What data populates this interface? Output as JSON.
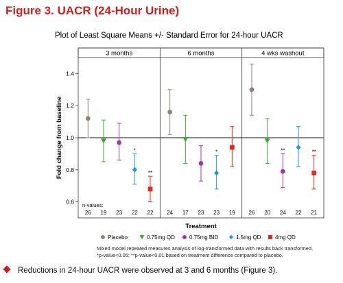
{
  "figure_title": "Figure 3. UACR (24-Hour Urine)",
  "bullet_text": "Reductions in 24-hour UACR were observed at 3 and 6 months (Figure 3).",
  "footnote_1": "Mixed model repeated measures analysis of log-transformed data with results back transformed.",
  "footnote_2": "*p-value<0.05; **p-value<0.01 based on treatment difference compared to placebo.",
  "chart_data": {
    "type": "scatter",
    "title": "Plot of Least Square Means +/- Standard Error for 24-hour UACR",
    "xlabel": "Treatment",
    "ylabel": "Fold change from baseline",
    "ylim": [
      0.5,
      1.5
    ],
    "yticks": [
      0.6,
      0.8,
      1.0,
      1.2,
      1.4
    ],
    "reference_line": 1.0,
    "n_values_label": "n-values:",
    "panels": [
      "3 months",
      "6 months",
      "4 wks washout"
    ],
    "series": [
      {
        "name": "Placebo",
        "color": "#8c8279",
        "marker": "circle",
        "mean": [
          1.12,
          1.16,
          1.3
        ],
        "lower": [
          1.0,
          1.02,
          1.14
        ],
        "upper": [
          1.24,
          1.3,
          1.46
        ],
        "sig": [
          "",
          "",
          ""
        ],
        "n": [
          26,
          24,
          26
        ]
      },
      {
        "name": "0.75mg QD",
        "color": "#3aa935",
        "marker": "triangle",
        "mean": [
          0.98,
          0.99,
          0.98
        ],
        "lower": [
          0.85,
          0.84,
          0.84
        ],
        "upper": [
          1.11,
          1.14,
          1.12
        ],
        "sig": [
          "",
          "",
          ""
        ],
        "n": [
          19,
          17,
          20
        ]
      },
      {
        "name": "0.75mg BID",
        "color": "#9b3b9e",
        "marker": "circle",
        "mean": [
          0.97,
          0.84,
          0.79
        ],
        "lower": [
          0.86,
          0.73,
          0.69
        ],
        "upper": [
          1.09,
          0.95,
          0.9
        ],
        "sig": [
          "",
          "",
          "**"
        ],
        "n": [
          23,
          23,
          24
        ]
      },
      {
        "name": "1.5mg QD",
        "color": "#1f9ad6",
        "marker": "diamond",
        "mean": [
          0.8,
          0.78,
          0.94
        ],
        "lower": [
          0.71,
          0.68,
          0.82
        ],
        "upper": [
          0.9,
          0.89,
          1.07
        ],
        "sig": [
          "*",
          "*",
          ""
        ],
        "n": [
          22,
          23,
          22
        ]
      },
      {
        "name": "4mg QD",
        "color": "#e02b20",
        "marker": "square",
        "mean": [
          0.68,
          0.94,
          0.78
        ],
        "lower": [
          0.6,
          0.82,
          0.68
        ],
        "upper": [
          0.76,
          1.07,
          0.89
        ],
        "sig": [
          "**",
          "",
          "**"
        ],
        "n": [
          22,
          19,
          21
        ]
      }
    ]
  }
}
